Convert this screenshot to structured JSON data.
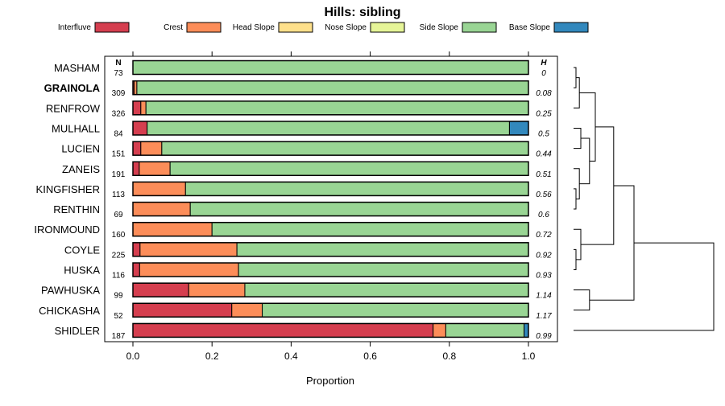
{
  "chart_data": {
    "type": "bar",
    "orientation": "horizontal",
    "stacked": true,
    "title": "Hills: sibling",
    "xlabel": "Proportion",
    "ylabel": "",
    "xlim": [
      0,
      1
    ],
    "x_ticks": [
      "0.0",
      "0.2",
      "0.4",
      "0.6",
      "0.8",
      "1.0"
    ],
    "x_tick_values": [
      0,
      0.2,
      0.4,
      0.6,
      0.8,
      1.0
    ],
    "n_header": "N",
    "h_header": "H",
    "highlight": "GRAINOLA",
    "legend_position": "top",
    "legend": [
      {
        "name": "Interfluve",
        "color": "#d53e4f"
      },
      {
        "name": "Crest",
        "color": "#fc8d59"
      },
      {
        "name": "Head Slope",
        "color": "#fee08b"
      },
      {
        "name": "Nose Slope",
        "color": "#e6f598"
      },
      {
        "name": "Side Slope",
        "color": "#99d594"
      },
      {
        "name": "Base Slope",
        "color": "#3288bd"
      }
    ],
    "categories": [
      "MASHAM",
      "GRAINOLA",
      "RENFROW",
      "MULHALL",
      "LUCIEN",
      "ZANEIS",
      "KINGFISHER",
      "RENTHIN",
      "IRONMOUND",
      "COYLE",
      "HUSKA",
      "PAWHUSKA",
      "CHICKASHA",
      "SHIDLER"
    ],
    "n_values": [
      "73",
      "309",
      "326",
      "84",
      "151",
      "191",
      "113",
      "69",
      "160",
      "225",
      "116",
      "99",
      "52",
      "187"
    ],
    "h_values": [
      "0",
      "0.08",
      "0.25",
      "0.5",
      "0.44",
      "0.51",
      "0.56",
      "0.6",
      "0.72",
      "0.92",
      "0.93",
      "1.14",
      "1.17",
      "0.99"
    ],
    "series": [
      {
        "name": "Interfluve",
        "values": [
          0,
          0.003,
          0.02,
          0.036,
          0.02,
          0.016,
          0,
          0,
          0,
          0.018,
          0.017,
          0.141,
          0.25,
          0.759
        ]
      },
      {
        "name": "Crest",
        "values": [
          0,
          0.007,
          0.013,
          0,
          0.053,
          0.078,
          0.133,
          0.145,
          0.2,
          0.245,
          0.25,
          0.142,
          0.077,
          0.032
        ]
      },
      {
        "name": "Head Slope",
        "values": [
          0,
          0,
          0,
          0,
          0,
          0,
          0,
          0,
          0,
          0,
          0,
          0,
          0,
          0
        ]
      },
      {
        "name": "Nose Slope",
        "values": [
          0,
          0,
          0,
          0,
          0,
          0,
          0,
          0,
          0,
          0,
          0,
          0,
          0,
          0
        ]
      },
      {
        "name": "Side Slope",
        "values": [
          1,
          0.99,
          0.967,
          0.916,
          0.927,
          0.906,
          0.867,
          0.855,
          0.8,
          0.737,
          0.733,
          0.717,
          0.673,
          0.198
        ]
      },
      {
        "name": "Base Slope",
        "values": [
          0,
          0,
          0,
          0.048,
          0,
          0,
          0,
          0,
          0,
          0,
          0,
          0,
          0,
          0.011
        ]
      }
    ],
    "dendrogram": {
      "description_note": "hierarchical clustering of the categories shown at right",
      "merges": [
        {
          "a": "MASHAM",
          "b": "GRAINOLA",
          "height": 0.05
        },
        {
          "a": "m1",
          "b": "RENFROW",
          "height": 0.12
        },
        {
          "a": "MULHALL",
          "b": "LUCIEN",
          "height": 0.15
        },
        {
          "a": "KINGFISHER",
          "b": "RENTHIN",
          "height": 0.05
        },
        {
          "a": "ZANEIS",
          "b": "m4",
          "height": 0.12
        },
        {
          "a": "m3",
          "b": "m5",
          "height": 0.33
        },
        {
          "a": "m2",
          "b": "m6",
          "height": 0.45
        },
        {
          "a": "COYLE",
          "b": "HUSKA",
          "height": 0.05
        },
        {
          "a": "IRONMOUND",
          "b": "m8",
          "height": 0.15
        },
        {
          "a": "m7",
          "b": "m9",
          "height": 0.83
        },
        {
          "a": "PAWHUSKA",
          "b": "CHICKASHA",
          "height": 0.33
        },
        {
          "a": "m10",
          "b": "m11",
          "height": 1.25
        },
        {
          "a": "m12",
          "b": "SHIDLER",
          "height": 2.9
        }
      ],
      "max_height": 3.0
    }
  }
}
